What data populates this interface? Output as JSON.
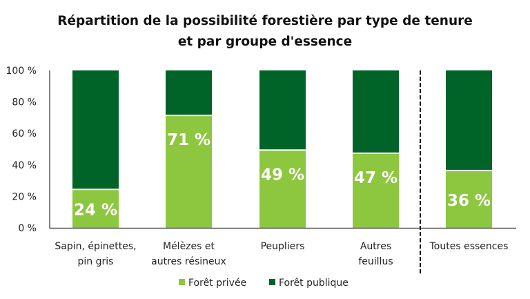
{
  "chart_data": {
    "type": "bar",
    "stacked": true,
    "title": [
      "Répartition de la possibilité forestière par type de tenure",
      "et par groupe d'essence"
    ],
    "categories": [
      [
        "Sapin, épinettes,",
        "pin gris"
      ],
      [
        "Mélèzes et",
        "autres résineux"
      ],
      [
        "Peupliers"
      ],
      [
        "Autres",
        "feuillus"
      ],
      [
        "Toutes essences"
      ]
    ],
    "series": [
      {
        "name": "Forêt privée",
        "color": "#8dc63f",
        "values": [
          24,
          71,
          49,
          47,
          36
        ]
      },
      {
        "name": "Forêt publique",
        "color": "#006328",
        "values": [
          76,
          29,
          51,
          53,
          64
        ]
      }
    ],
    "data_labels": [
      "24 %",
      "71 %",
      "49 %",
      "47 %",
      "36 %"
    ],
    "yticks": [
      "0 %",
      "20 %",
      "40 %",
      "60 %",
      "80 %",
      "100 %"
    ],
    "ylim": [
      0,
      100
    ],
    "xlabel": "",
    "ylabel": "",
    "grid": false,
    "legend_position": "bottom",
    "separator_before_category": 4
  }
}
